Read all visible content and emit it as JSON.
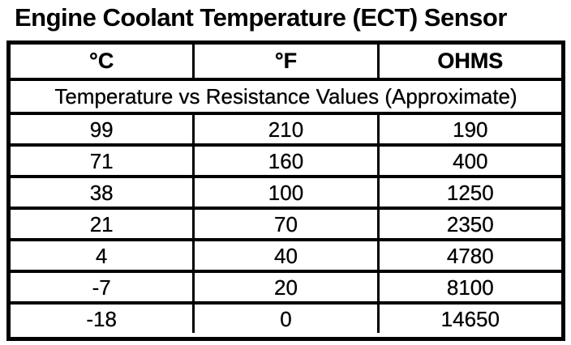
{
  "title": "Engine Coolant Temperature (ECT) Sensor",
  "table": {
    "headers": [
      "°C",
      "°F",
      "OHMS"
    ],
    "subtitle": "Temperature vs Resistance Values (Approximate)",
    "rows": [
      [
        "99",
        "210",
        "190"
      ],
      [
        "71",
        "160",
        "400"
      ],
      [
        "38",
        "100",
        "1250"
      ],
      [
        "21",
        "70",
        "2350"
      ],
      [
        "4",
        "40",
        "4780"
      ],
      [
        "-7",
        "20",
        "8100"
      ],
      [
        "-18",
        "0",
        "14650"
      ]
    ]
  },
  "colors": {
    "ink": "#000000",
    "paper": "#ffffff"
  }
}
